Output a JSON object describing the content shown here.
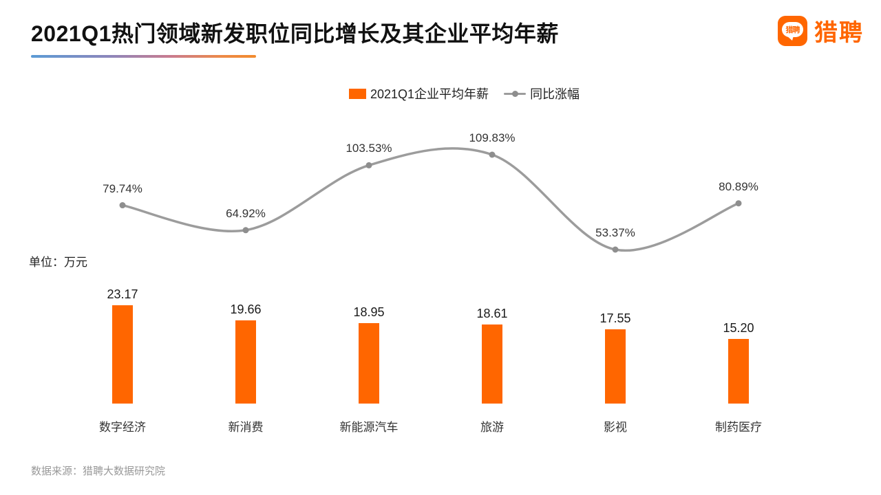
{
  "header": {
    "title": "2021Q1热门领域新发职位同比增长及其企业平均年薪",
    "logo_bubble_text": "猎聘",
    "logo_text": "猎聘"
  },
  "legend": {
    "bar_series_label": "2021Q1企业平均年薪",
    "line_series_label": "同比涨幅"
  },
  "unit_label": "单位：万元",
  "footer": {
    "source": "数据来源：猎聘大数据研究院"
  },
  "colors": {
    "brand_orange": "#FF6600",
    "line_gray": "#9c9c9c",
    "dot_gray": "#8e8e8e",
    "label_dark": "#333333",
    "footer_gray": "#999999"
  },
  "chart_data": {
    "type": "bar",
    "subtype": "bar-line-combo",
    "title": "2021Q1热门领域新发职位同比增长及其企业平均年薪",
    "categories": [
      "数字经济",
      "新消费",
      "新能源汽车",
      "旅游",
      "影视",
      "制药医疗"
    ],
    "series": [
      {
        "name": "2021Q1企业平均年薪",
        "type": "bar",
        "unit": "万元",
        "color": "#FF6600",
        "values": [
          23.17,
          19.66,
          18.95,
          18.61,
          17.55,
          15.2
        ],
        "labels": [
          "23.17",
          "19.66",
          "18.95",
          "18.61",
          "17.55",
          "15.20"
        ]
      },
      {
        "name": "同比涨幅",
        "type": "line",
        "unit": "%",
        "color": "#9c9c9c",
        "smooth": true,
        "values": [
          79.74,
          64.92,
          103.53,
          109.83,
          53.37,
          80.89
        ],
        "labels": [
          "79.74%",
          "64.92%",
          "103.53%",
          "109.83%",
          "53.37%",
          "80.89%"
        ]
      }
    ],
    "grid": false,
    "axes_visible": false,
    "legend_position": "top-center"
  }
}
